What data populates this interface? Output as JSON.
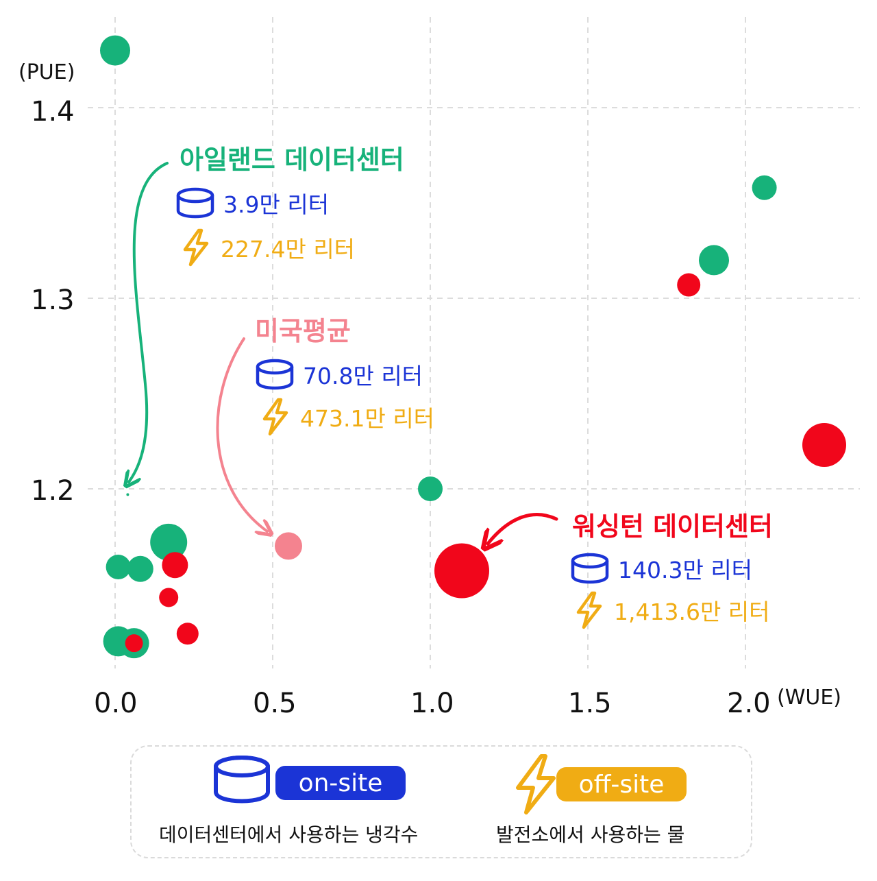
{
  "chart_data": {
    "type": "scatter",
    "xlabel": "(WUE)",
    "ylabel": "(PUE)",
    "x_ticks": [
      "0.0",
      "0.5",
      "1.0",
      "1.5",
      "2.0"
    ],
    "y_ticks": [
      "1.2",
      "1.3",
      "1.4"
    ],
    "xlim": [
      -0.36,
      2.36
    ],
    "ylim": [
      1.11,
      1.43
    ],
    "grid": true,
    "colors": {
      "green": "#17b27a",
      "red": "#f1061b",
      "pink": "#f4838f",
      "blue": "#1b34d6",
      "orange": "#f0ac14"
    },
    "points": [
      {
        "x": 0.0,
        "y": 1.43,
        "size": 22,
        "color": "green"
      },
      {
        "x": 2.06,
        "y": 1.358,
        "size": 18,
        "color": "green"
      },
      {
        "x": 1.9,
        "y": 1.32,
        "size": 22,
        "color": "green"
      },
      {
        "x": 1.82,
        "y": 1.307,
        "size": 17,
        "color": "red"
      },
      {
        "x": 2.25,
        "y": 1.223,
        "size": 32,
        "color": "red"
      },
      {
        "x": 1.0,
        "y": 1.2,
        "size": 18,
        "color": "green"
      },
      {
        "x": 0.04,
        "y": 1.197,
        "size": 2,
        "color": "green"
      },
      {
        "x": 0.55,
        "y": 1.17,
        "size": 20,
        "color": "pink"
      },
      {
        "x": 1.1,
        "y": 1.157,
        "size": 40,
        "color": "red"
      },
      {
        "x": 0.17,
        "y": 1.172,
        "size": 27,
        "color": "green"
      },
      {
        "x": 0.01,
        "y": 1.159,
        "size": 18,
        "color": "green"
      },
      {
        "x": 0.08,
        "y": 1.158,
        "size": 19,
        "color": "green"
      },
      {
        "x": 0.19,
        "y": 1.16,
        "size": 19,
        "color": "red"
      },
      {
        "x": 0.17,
        "y": 1.143,
        "size": 14,
        "color": "red"
      },
      {
        "x": 0.23,
        "y": 1.124,
        "size": 16,
        "color": "red"
      },
      {
        "x": 0.01,
        "y": 1.12,
        "size": 22,
        "color": "green"
      },
      {
        "x": 0.06,
        "y": 1.119,
        "size": 22,
        "color": "green"
      },
      {
        "x": 0.06,
        "y": 1.119,
        "size": 13,
        "color": "red"
      }
    ],
    "annotations": [
      {
        "title": "아일랜드 데이터센터",
        "color": "green",
        "onsite": "3.9만 리터",
        "offsite": "227.4만 리터"
      },
      {
        "title": "미국평균",
        "color": "pink",
        "onsite": "70.8만 리터",
        "offsite": "473.1만 리터"
      },
      {
        "title": "워싱턴 데이터센터",
        "color": "red",
        "onsite": "140.3만 리터",
        "offsite": "1,413.6만 리터"
      }
    ]
  },
  "legend": {
    "onsite_label": "on-site",
    "onsite_desc": "데이터센터에서 사용하는 냉각수",
    "offsite_label": "off-site",
    "offsite_desc": "발전소에서 사용하는 물"
  }
}
